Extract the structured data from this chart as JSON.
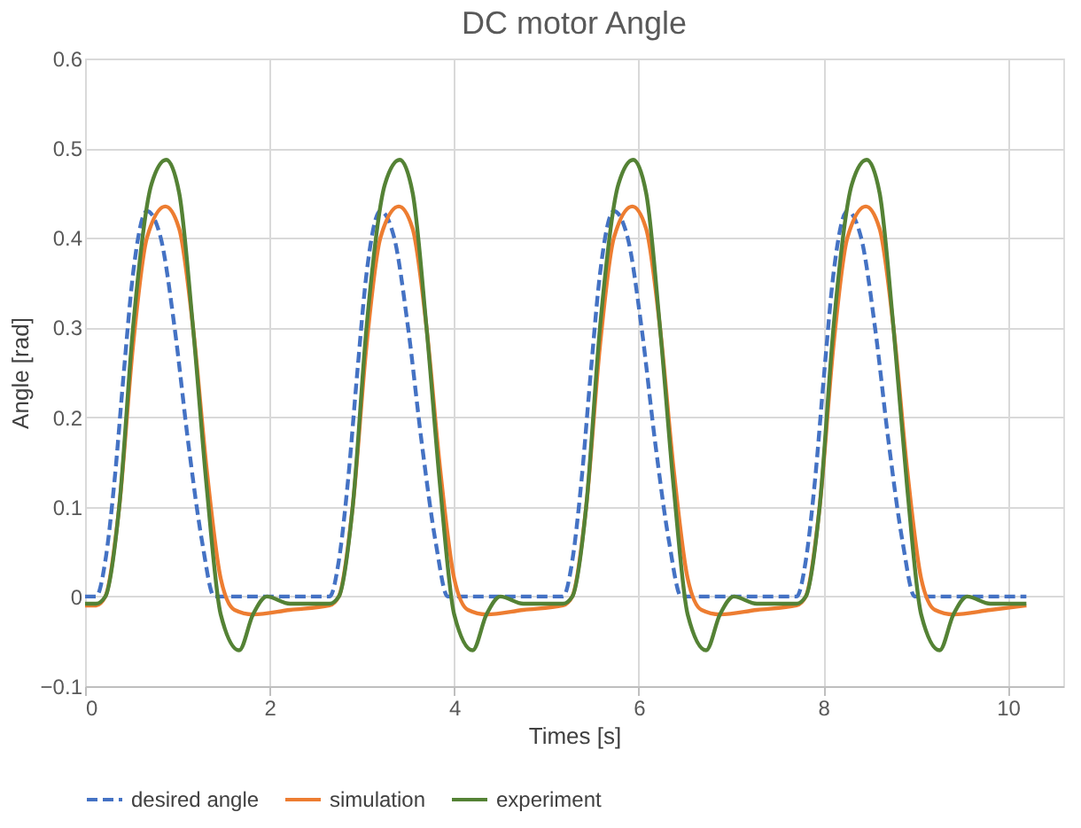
{
  "chart_data": {
    "type": "line",
    "title": "DC motor Angle",
    "xlabel": "Times [s]",
    "ylabel": "Angle [rad]",
    "xlim": [
      0,
      10.6
    ],
    "xticks": [
      0,
      2,
      4,
      6,
      8,
      10
    ],
    "ylim": [
      -0.1,
      0.6
    ],
    "yticks": [
      -0.1,
      0,
      0.1,
      0.2,
      0.3,
      0.4,
      0.5,
      0.6
    ],
    "grid": true,
    "legend": "bottom",
    "marker": "none",
    "series": [
      {
        "name": "desired angle",
        "color": "#4472c4",
        "line_style": "dashed",
        "x": [
          0,
          0.12,
          0.22,
          0.32,
          0.42,
          0.52,
          0.67,
          0.82,
          0.97,
          1.12,
          1.27,
          1.4,
          2.65,
          2.75,
          2.85,
          2.95,
          3.05,
          3.2,
          3.35,
          3.5,
          3.65,
          3.8,
          3.93,
          5.18,
          5.28,
          5.38,
          5.48,
          5.58,
          5.73,
          5.88,
          6.03,
          6.18,
          6.33,
          6.46,
          7.71,
          7.81,
          7.91,
          8.01,
          8.11,
          8.26,
          8.41,
          8.56,
          8.71,
          8.86,
          8.99,
          10.2
        ],
        "values": [
          0,
          0,
          0.04,
          0.13,
          0.25,
          0.36,
          0.43,
          0.4,
          0.3,
          0.17,
          0.06,
          0,
          0,
          0.04,
          0.13,
          0.25,
          0.36,
          0.43,
          0.4,
          0.3,
          0.17,
          0.06,
          0,
          0,
          0.04,
          0.13,
          0.25,
          0.36,
          0.43,
          0.4,
          0.3,
          0.17,
          0.06,
          0,
          0,
          0.04,
          0.13,
          0.25,
          0.36,
          0.43,
          0.4,
          0.3,
          0.17,
          0.06,
          0,
          0
        ]
      },
      {
        "name": "simulation",
        "color": "#ed7d31",
        "line_style": "solid",
        "x": [
          0,
          0.12,
          0.22,
          0.37,
          0.52,
          0.67,
          0.87,
          1.02,
          1.17,
          1.32,
          1.47,
          1.62,
          1.82,
          2.22,
          2.65,
          2.75,
          2.9,
          3.05,
          3.2,
          3.4,
          3.55,
          3.7,
          3.85,
          4.0,
          4.15,
          4.35,
          4.75,
          5.18,
          5.28,
          5.43,
          5.58,
          5.73,
          5.93,
          6.08,
          6.23,
          6.38,
          6.53,
          6.68,
          6.88,
          7.28,
          7.71,
          7.81,
          7.96,
          8.11,
          8.26,
          8.46,
          8.61,
          8.76,
          8.91,
          9.06,
          9.21,
          9.41,
          9.81,
          10.2
        ],
        "values": [
          -0.01,
          -0.01,
          0,
          0.1,
          0.28,
          0.4,
          0.435,
          0.41,
          0.3,
          0.14,
          0.02,
          -0.015,
          -0.02,
          -0.015,
          -0.01,
          0,
          0.1,
          0.28,
          0.4,
          0.435,
          0.41,
          0.3,
          0.14,
          0.02,
          -0.015,
          -0.02,
          -0.015,
          -0.01,
          0,
          0.1,
          0.28,
          0.4,
          0.435,
          0.41,
          0.3,
          0.14,
          0.02,
          -0.015,
          -0.02,
          -0.015,
          -0.01,
          0,
          0.1,
          0.28,
          0.4,
          0.435,
          0.41,
          0.3,
          0.14,
          0.02,
          -0.015,
          -0.02,
          -0.015,
          -0.01
        ]
      },
      {
        "name": "experiment",
        "color": "#548235",
        "line_style": "solid",
        "x": [
          0,
          0.12,
          0.22,
          0.37,
          0.52,
          0.72,
          0.88,
          1.02,
          1.17,
          1.32,
          1.47,
          1.67,
          1.82,
          1.97,
          2.22,
          2.65,
          2.75,
          2.9,
          3.05,
          3.25,
          3.41,
          3.55,
          3.7,
          3.85,
          4.0,
          4.2,
          4.35,
          4.5,
          4.75,
          5.18,
          5.28,
          5.43,
          5.58,
          5.78,
          5.94,
          6.08,
          6.23,
          6.38,
          6.53,
          6.73,
          6.88,
          7.03,
          7.28,
          7.71,
          7.81,
          7.96,
          8.11,
          8.31,
          8.47,
          8.61,
          8.76,
          8.91,
          9.06,
          9.26,
          9.41,
          9.56,
          9.81,
          10.2
        ],
        "values": [
          -0.008,
          -0.008,
          0,
          0.1,
          0.3,
          0.46,
          0.487,
          0.45,
          0.3,
          0.12,
          -0.02,
          -0.06,
          -0.02,
          0,
          -0.008,
          -0.008,
          0,
          0.1,
          0.3,
          0.46,
          0.487,
          0.45,
          0.3,
          0.12,
          -0.02,
          -0.06,
          -0.02,
          0,
          -0.008,
          -0.008,
          0,
          0.1,
          0.3,
          0.46,
          0.487,
          0.45,
          0.3,
          0.12,
          -0.02,
          -0.06,
          -0.02,
          0,
          -0.008,
          -0.008,
          0,
          0.1,
          0.3,
          0.46,
          0.487,
          0.45,
          0.3,
          0.12,
          -0.02,
          -0.06,
          -0.02,
          0,
          -0.008,
          -0.008
        ]
      }
    ]
  }
}
